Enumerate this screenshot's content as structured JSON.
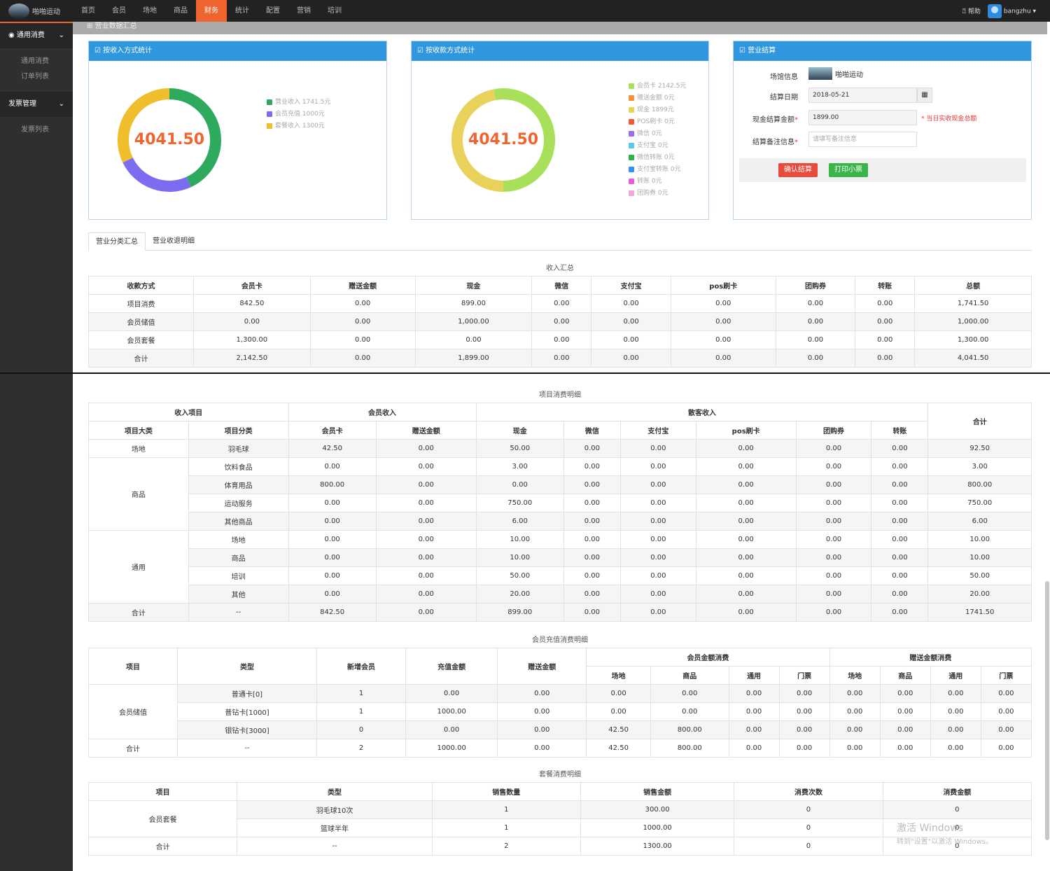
{
  "app": {
    "brand": "啪啪运动",
    "nav": [
      "首页",
      "会员",
      "场地",
      "商品",
      "财务",
      "统计",
      "配置",
      "营销",
      "培训"
    ],
    "active_nav": "财务",
    "help": "帮助",
    "user": "bangzhu"
  },
  "sidebar": {
    "groups": [
      {
        "label": "通用消费",
        "items": [
          "通用消费",
          "订单列表"
        ]
      },
      {
        "label": "发票管理",
        "items": [
          "发票列表"
        ]
      }
    ]
  },
  "header_bar": "营业数据汇总",
  "panel_income": {
    "title": "按收入方式统计",
    "total": "4041.50",
    "legend": [
      "营业收入 1741.5元",
      "会员充值 1000元",
      "套餐收入 1300元"
    ]
  },
  "panel_payment": {
    "title": "按收款方式统计",
    "total": "4041.50",
    "legend": [
      "会员卡 2142.5元",
      "赠送金额 0元",
      "现金 1899元",
      "POS刷卡 0元",
      "微信 0元",
      "支付宝 0元",
      "微信转账 0元",
      "支付宝转账 0元",
      "转账 0元",
      "团购券 0元"
    ]
  },
  "panel_settle": {
    "title": "营业结算",
    "venue_label": "场馆信息",
    "venue_name": "啪啪运动",
    "date_label": "结算日期",
    "date_value": "2018-05-21",
    "cash_label": "现金结算金额",
    "cash_value": "1899.00",
    "cash_hint": "* 当日实收现金总额",
    "note_label": "结算备注信息",
    "note_placeholder": "请填写备注信息",
    "confirm": "确认结算",
    "print": "打印小票"
  },
  "tabs": [
    "营业分类汇总",
    "营业收退明细"
  ],
  "income_summary": {
    "title": "收入汇总",
    "headers": [
      "收款方式",
      "会员卡",
      "赠送金额",
      "现金",
      "微信",
      "支付宝",
      "pos刷卡",
      "团购券",
      "转账",
      "总额"
    ],
    "rows": [
      [
        "项目消费",
        "842.50",
        "0.00",
        "899.00",
        "0.00",
        "0.00",
        "0.00",
        "0.00",
        "0.00",
        "1,741.50"
      ],
      [
        "会员储值",
        "0.00",
        "0.00",
        "1,000.00",
        "0.00",
        "0.00",
        "0.00",
        "0.00",
        "0.00",
        "1,000.00"
      ],
      [
        "会员套餐",
        "1,300.00",
        "0.00",
        "0.00",
        "0.00",
        "0.00",
        "0.00",
        "0.00",
        "0.00",
        "1,300.00"
      ],
      [
        "合计",
        "2,142.50",
        "0.00",
        "1,899.00",
        "0.00",
        "0.00",
        "0.00",
        "0.00",
        "0.00",
        "4,041.50"
      ]
    ]
  },
  "project_detail": {
    "title": "项目消费明细",
    "h1": [
      "收入项目",
      "会员收入",
      "散客收入",
      "合计"
    ],
    "h2": [
      "项目大类",
      "项目分类",
      "会员卡",
      "赠送金额",
      "现金",
      "微信",
      "支付宝",
      "pos刷卡",
      "团购券",
      "转账"
    ],
    "groups": [
      {
        "cat": "场地",
        "rows": [
          [
            "羽毛球",
            "42.50",
            "0.00",
            "50.00",
            "0.00",
            "0.00",
            "0.00",
            "0.00",
            "0.00",
            "92.50"
          ]
        ]
      },
      {
        "cat": "商品",
        "rows": [
          [
            "饮料食品",
            "0.00",
            "0.00",
            "3.00",
            "0.00",
            "0.00",
            "0.00",
            "0.00",
            "0.00",
            "3.00"
          ],
          [
            "体育用品",
            "800.00",
            "0.00",
            "0.00",
            "0.00",
            "0.00",
            "0.00",
            "0.00",
            "0.00",
            "800.00"
          ],
          [
            "运动服务",
            "0.00",
            "0.00",
            "750.00",
            "0.00",
            "0.00",
            "0.00",
            "0.00",
            "0.00",
            "750.00"
          ],
          [
            "其他商品",
            "0.00",
            "0.00",
            "6.00",
            "0.00",
            "0.00",
            "0.00",
            "0.00",
            "0.00",
            "6.00"
          ]
        ]
      },
      {
        "cat": "通用",
        "rows": [
          [
            "场地",
            "0.00",
            "0.00",
            "10.00",
            "0.00",
            "0.00",
            "0.00",
            "0.00",
            "0.00",
            "10.00"
          ],
          [
            "商品",
            "0.00",
            "0.00",
            "10.00",
            "0.00",
            "0.00",
            "0.00",
            "0.00",
            "0.00",
            "10.00"
          ],
          [
            "培训",
            "0.00",
            "0.00",
            "50.00",
            "0.00",
            "0.00",
            "0.00",
            "0.00",
            "0.00",
            "50.00"
          ],
          [
            "其他",
            "0.00",
            "0.00",
            "20.00",
            "0.00",
            "0.00",
            "0.00",
            "0.00",
            "0.00",
            "20.00"
          ]
        ]
      }
    ],
    "total": [
      "合计",
      "--",
      "842.50",
      "0.00",
      "899.00",
      "0.00",
      "0.00",
      "0.00",
      "0.00",
      "0.00",
      "1741.50"
    ]
  },
  "member_detail": {
    "title": "会员充值消费明细",
    "h1": [
      "项目",
      "类型",
      "新增会员",
      "充值金额",
      "赠送金额",
      "会员金额消费",
      "赠送金额消费"
    ],
    "h2": [
      "场地",
      "商品",
      "通用",
      "门票",
      "场地",
      "商品",
      "通用",
      "门票"
    ],
    "cat": "会员储值",
    "rows": [
      [
        "普通卡[0]",
        "1",
        "0.00",
        "0.00",
        "0.00",
        "0.00",
        "0.00",
        "0.00",
        "0.00",
        "0.00",
        "0.00",
        "0.00"
      ],
      [
        "普钻卡[1000]",
        "1",
        "1000.00",
        "0.00",
        "0.00",
        "0.00",
        "0.00",
        "0.00",
        "0.00",
        "0.00",
        "0.00",
        "0.00"
      ],
      [
        "银钻卡[3000]",
        "0",
        "0.00",
        "0.00",
        "42.50",
        "800.00",
        "0.00",
        "0.00",
        "0.00",
        "0.00",
        "0.00",
        "0.00"
      ]
    ],
    "total": [
      "合计",
      "--",
      "2",
      "1000.00",
      "0.00",
      "42.50",
      "800.00",
      "0.00",
      "0.00",
      "0.00",
      "0.00",
      "0.00",
      "0.00"
    ]
  },
  "package_detail": {
    "title": "套餐消费明细",
    "headers": [
      "项目",
      "类型",
      "销售数量",
      "销售金额",
      "消费次数",
      "消费金额"
    ],
    "cat": "会员套餐",
    "rows": [
      [
        "羽毛球10次",
        "1",
        "300.00",
        "0",
        "0"
      ],
      [
        "篮球半年",
        "1",
        "1000.00",
        "0",
        "0"
      ]
    ],
    "total": [
      "合计",
      "--",
      "2",
      "1300.00",
      "0",
      "0"
    ]
  },
  "watermark": [
    "激活 Windows",
    "转到\"设置\"以激活 Windows。"
  ],
  "colors": {
    "accent": "#f0652f",
    "panel_header": "#3097de",
    "income": [
      "#2eaa5f",
      "#7b6cf0",
      "#f0be2d"
    ],
    "payment": [
      "#a9e05a",
      "#f7913a",
      "#e9d25a",
      "#f05a3a",
      "#9b6cf0",
      "#5ac8e9",
      "#2bb24c",
      "#3a8ef0",
      "#e95ae0",
      "#f5a6d9"
    ]
  },
  "chart_data": [
    {
      "type": "pie",
      "title": "按收入方式统计",
      "categories": [
        "营业收入",
        "会员充值",
        "套餐收入"
      ],
      "values": [
        1741.5,
        1000,
        1300
      ]
    },
    {
      "type": "pie",
      "title": "按收款方式统计",
      "categories": [
        "会员卡",
        "赠送金额",
        "现金",
        "POS刷卡",
        "微信",
        "支付宝",
        "微信转账",
        "支付宝转账",
        "转账",
        "团购券"
      ],
      "values": [
        2142.5,
        0,
        1899,
        0,
        0,
        0,
        0,
        0,
        0,
        0
      ]
    }
  ]
}
